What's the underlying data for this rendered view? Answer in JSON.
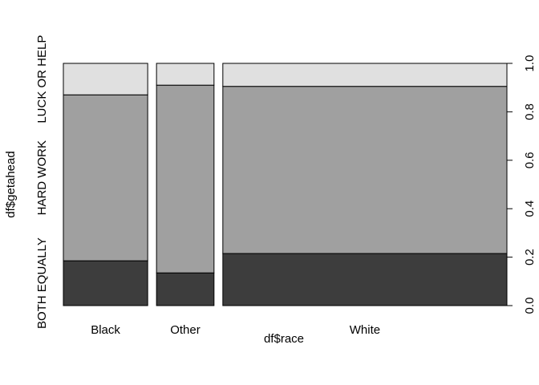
{
  "chart_data": {
    "type": "mosaic",
    "xlabel": "df$race",
    "ylabel": "df$getahead",
    "categories": [
      "Black",
      "Other",
      "White"
    ],
    "category_widths": [
      0.198,
      0.135,
      0.667
    ],
    "levels": [
      "BOTH EQUALLY",
      "HARD WORK",
      "LUCK OR HELP"
    ],
    "level_colors": [
      "#3d3d3d",
      "#a0a0a0",
      "#e0e0e0"
    ],
    "proportions": [
      [
        0.185,
        0.685,
        0.13
      ],
      [
        0.135,
        0.775,
        0.09
      ],
      [
        0.215,
        0.69,
        0.095
      ]
    ],
    "right_axis": {
      "ticks": [
        0.0,
        0.2,
        0.4,
        0.6,
        0.8,
        1.0
      ],
      "labels": [
        "0.0",
        "0.2",
        "0.4",
        "0.6",
        "0.8",
        "1.0"
      ]
    }
  }
}
